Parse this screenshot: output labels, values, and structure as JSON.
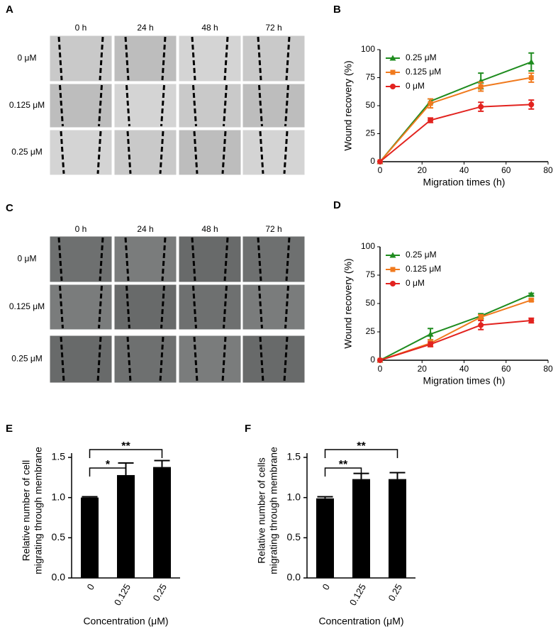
{
  "image_panels": [
    {
      "panel": "A",
      "columns": [
        "0 h",
        "24 h",
        "48 h",
        "72 h"
      ],
      "rows": [
        "0 μM",
        "0.125 μM",
        "0.25 μM"
      ]
    },
    {
      "panel": "C",
      "columns": [
        "0 h",
        "24 h",
        "48 h",
        "72 h"
      ],
      "rows": [
        "0 μM",
        "0.125 μM",
        "0.25 μM"
      ]
    }
  ],
  "chart_data": [
    {
      "type": "line",
      "panel": "B",
      "xlabel": "Migration times (h)",
      "ylabel": "Wound recovery (%)",
      "x": [
        0,
        24,
        48,
        72
      ],
      "xlim": [
        0,
        80
      ],
      "xticks": [
        0,
        20,
        40,
        60,
        80
      ],
      "ylim": [
        0,
        100
      ],
      "yticks": [
        0,
        25,
        50,
        75,
        100
      ],
      "series": [
        {
          "name": "0.25 μM",
          "color": "#1f8c1f",
          "marker": "triangle",
          "values": [
            0,
            54,
            72,
            89
          ],
          "errors": [
            0,
            2,
            7,
            8
          ]
        },
        {
          "name": "0.125 μM",
          "color": "#f07a1e",
          "marker": "square",
          "values": [
            0,
            52,
            67,
            75
          ],
          "errors": [
            0,
            4,
            4,
            4
          ]
        },
        {
          "name": "0 μM",
          "color": "#e2231f",
          "marker": "circle",
          "values": [
            0,
            37,
            49,
            51
          ],
          "errors": [
            0,
            2,
            4,
            4
          ]
        }
      ]
    },
    {
      "type": "line",
      "panel": "D",
      "xlabel": "Migration times (h)",
      "ylabel": "Wound recovery (%)",
      "x": [
        0,
        24,
        48,
        72
      ],
      "xlim": [
        0,
        80
      ],
      "xticks": [
        0,
        20,
        40,
        60,
        80
      ],
      "ylim": [
        0,
        100
      ],
      "yticks": [
        0,
        25,
        50,
        75,
        100
      ],
      "series": [
        {
          "name": "0.25 μM",
          "color": "#1f8c1f",
          "marker": "triangle",
          "values": [
            0,
            23,
            39,
            58
          ],
          "errors": [
            0,
            5,
            2,
            1
          ]
        },
        {
          "name": "0.125 μM",
          "color": "#f07a1e",
          "marker": "square",
          "values": [
            0,
            15,
            38,
            53
          ],
          "errors": [
            0,
            3,
            2,
            1
          ]
        },
        {
          "name": "0 μM",
          "color": "#e2231f",
          "marker": "circle",
          "values": [
            0,
            14,
            31,
            35
          ],
          "errors": [
            0,
            2,
            4,
            2
          ]
        }
      ]
    },
    {
      "type": "bar",
      "panel": "E",
      "xlabel": "Concentration (μM)",
      "ylabel": [
        "Relative number of cell",
        "migrating  through membrane"
      ],
      "categories": [
        "0",
        "0.125",
        "0.25"
      ],
      "values": [
        1.0,
        1.28,
        1.38
      ],
      "errors": [
        0.01,
        0.15,
        0.08
      ],
      "color": "#000000",
      "ylim": [
        0,
        1.5
      ],
      "yticks": [
        {
          "value": 0,
          "label": "0.0"
        },
        {
          "value": 0.5,
          "label": "0.5"
        },
        {
          "value": 1,
          "label": "1.0"
        },
        {
          "value": 1.5,
          "label": "1.5"
        }
      ],
      "annotations": [
        "*",
        "**"
      ]
    },
    {
      "type": "bar",
      "panel": "F",
      "xlabel": "Concentration (μM)",
      "ylabel": [
        "Relative number of cells",
        "migrating through membrane"
      ],
      "categories": [
        "0",
        "0.125",
        "0.25"
      ],
      "values": [
        0.99,
        1.23,
        1.23
      ],
      "errors": [
        0.02,
        0.07,
        0.08
      ],
      "color": "#000000",
      "ylim": [
        0,
        1.5
      ],
      "yticks": [
        {
          "value": 0,
          "label": "0.0"
        },
        {
          "value": 0.5,
          "label": "0.5"
        },
        {
          "value": 1,
          "label": "1.0"
        },
        {
          "value": 1.5,
          "label": "1.5"
        }
      ],
      "annotations": [
        "**",
        "**"
      ]
    }
  ]
}
